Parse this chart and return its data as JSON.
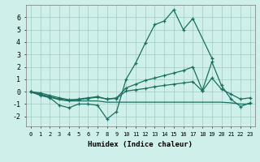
{
  "x": [
    0,
    1,
    2,
    3,
    4,
    5,
    6,
    7,
    8,
    9,
    10,
    11,
    12,
    13,
    14,
    15,
    16,
    17,
    18,
    19,
    20,
    21,
    22,
    23
  ],
  "line1": [
    0.0,
    -0.3,
    -0.5,
    -1.1,
    -1.3,
    -1.0,
    -1.0,
    -1.1,
    -2.2,
    -1.6,
    1.0,
    2.3,
    3.9,
    5.4,
    5.7,
    6.6,
    5.0,
    5.9,
    null,
    2.7,
    null,
    null,
    null,
    null
  ],
  "line2": [
    0.0,
    -0.2,
    -0.4,
    -0.6,
    -0.7,
    -0.6,
    -0.5,
    -0.4,
    -0.6,
    -0.5,
    0.3,
    0.6,
    0.9,
    1.1,
    1.3,
    1.5,
    1.7,
    2.0,
    0.1,
    2.4,
    0.5,
    -0.6,
    -1.2,
    -0.9
  ],
  "line3": [
    0.0,
    -0.1,
    -0.3,
    -0.5,
    -0.65,
    -0.65,
    -0.55,
    -0.45,
    -0.6,
    -0.55,
    0.05,
    0.15,
    0.25,
    0.4,
    0.5,
    0.6,
    0.7,
    0.8,
    0.05,
    1.1,
    0.2,
    -0.2,
    -0.6,
    -0.5
  ],
  "line4": [
    -0.05,
    -0.25,
    -0.45,
    -0.65,
    -0.75,
    -0.75,
    -0.75,
    -0.75,
    -0.85,
    -0.85,
    -0.85,
    -0.85,
    -0.85,
    -0.85,
    -0.85,
    -0.85,
    -0.85,
    -0.85,
    -0.85,
    -0.85,
    -0.85,
    -0.9,
    -1.0,
    -1.0
  ],
  "line_color": "#1a7060",
  "background_color": "#cff0ea",
  "grid_color": "#a0ccc4",
  "xlabel": "Humidex (Indice chaleur)",
  "ylim": [
    -2.8,
    7.0
  ],
  "xlim": [
    -0.5,
    23.5
  ],
  "yticks": [
    -2,
    -1,
    0,
    1,
    2,
    3,
    4,
    5,
    6
  ],
  "xticks": [
    0,
    1,
    2,
    3,
    4,
    5,
    6,
    7,
    8,
    9,
    10,
    11,
    12,
    13,
    14,
    15,
    16,
    17,
    18,
    19,
    20,
    21,
    22,
    23
  ]
}
